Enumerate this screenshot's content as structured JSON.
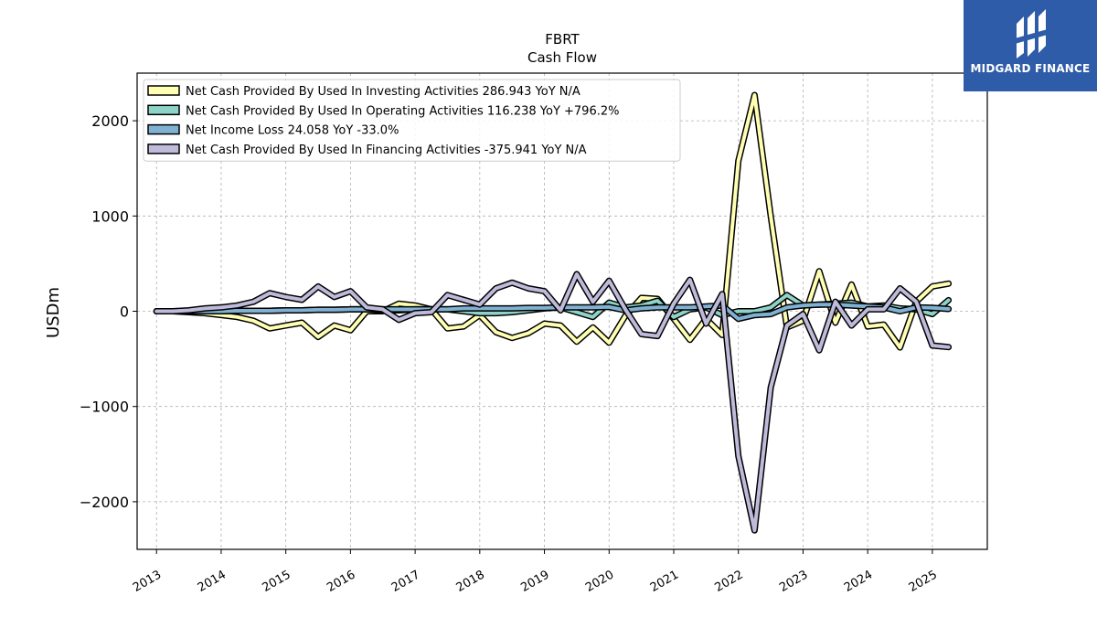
{
  "header": {
    "ticker": "FBRT",
    "subtitle": "Cash Flow"
  },
  "logo": {
    "text": "MIDGARD FINANCE",
    "icon": "midgard-logo-icon",
    "color": "#2f5ca8"
  },
  "chart_data": {
    "type": "line",
    "title": "FBRT",
    "subtitle": "Cash Flow",
    "xlabel": "",
    "ylabel": "USDm",
    "xlim": [
      2012.7,
      2025.85
    ],
    "ylim": [
      -2500,
      2500
    ],
    "yticks": [
      -2000,
      -1000,
      0,
      1000,
      2000
    ],
    "ytick_labels": [
      "−2000",
      "−1000",
      "0",
      "1000",
      "2000"
    ],
    "xticks": [
      2013,
      2014,
      2015,
      2016,
      2017,
      2018,
      2019,
      2020,
      2021,
      2022,
      2023,
      2024,
      2025
    ],
    "xtick_labels": [
      "2013",
      "2014",
      "2015",
      "2016",
      "2017",
      "2018",
      "2019",
      "2020",
      "2021",
      "2022",
      "2023",
      "2024",
      "2025"
    ],
    "grid": true,
    "legend_position": "top-left",
    "x": [
      2013.0,
      2013.25,
      2013.5,
      2013.75,
      2014.0,
      2014.25,
      2014.5,
      2014.75,
      2015.0,
      2015.25,
      2015.5,
      2015.75,
      2016.0,
      2016.25,
      2016.5,
      2016.75,
      2017.0,
      2017.25,
      2017.5,
      2017.75,
      2018.0,
      2018.25,
      2018.5,
      2018.75,
      2019.0,
      2019.25,
      2019.5,
      2019.75,
      2020.0,
      2020.25,
      2020.5,
      2020.75,
      2021.0,
      2021.25,
      2021.5,
      2021.75,
      2022.0,
      2022.25,
      2022.5,
      2022.75,
      2023.0,
      2023.25,
      2023.5,
      2023.75,
      2024.0,
      2024.25,
      2024.5,
      2024.75,
      2025.0,
      2025.25
    ],
    "series": [
      {
        "name": "Net Cash Provided By Used In Investing Activities",
        "legend_label": "Net Cash Provided By Used In Investing Activities  286.943 YoY N/A",
        "color": "#ffffb3",
        "values": [
          0,
          0,
          -10,
          -20,
          -40,
          -60,
          -100,
          -180,
          -150,
          -120,
          -270,
          -150,
          -200,
          0,
          0,
          80,
          60,
          20,
          -180,
          -160,
          -40,
          -220,
          -280,
          -230,
          -130,
          -150,
          -320,
          -170,
          -330,
          -50,
          140,
          130,
          -80,
          -300,
          -80,
          -250,
          1580,
          2270,
          1000,
          -170,
          -100,
          420,
          -120,
          280,
          -160,
          -140,
          -380,
          100,
          260,
          290
        ]
      },
      {
        "name": "Net Cash Provided By Used In Operating Activities",
        "legend_label": "Net Cash Provided By Used In Operating Activities  116.238 YoY +796.2%",
        "color": "#8dd3c7",
        "values": [
          0,
          0,
          0,
          0,
          0,
          5,
          5,
          5,
          10,
          10,
          15,
          15,
          20,
          20,
          10,
          10,
          20,
          20,
          20,
          0,
          -20,
          -20,
          -10,
          10,
          30,
          40,
          -10,
          -60,
          90,
          40,
          60,
          110,
          -60,
          20,
          40,
          -40,
          0,
          0,
          40,
          170,
          60,
          70,
          80,
          90,
          50,
          60,
          30,
          20,
          -30,
          116
        ]
      },
      {
        "name": "Net Income Loss",
        "legend_label": "Net Income Loss  24.058 YoY -33.0%",
        "color": "#80b1d3",
        "values": [
          0,
          0,
          0,
          0,
          0,
          5,
          5,
          5,
          10,
          10,
          15,
          15,
          20,
          20,
          20,
          20,
          20,
          20,
          20,
          30,
          30,
          30,
          30,
          35,
          35,
          40,
          40,
          40,
          45,
          10,
          30,
          40,
          40,
          40,
          50,
          60,
          -80,
          -40,
          -30,
          40,
          60,
          70,
          70,
          60,
          50,
          40,
          0,
          40,
          36,
          24
        ]
      },
      {
        "name": "Net Cash Provided By Used In Financing Activities",
        "legend_label": "Net Cash Provided By Used In Financing Activities  -375.941 YoY N/A",
        "color": "#bebada",
        "values": [
          0,
          0,
          10,
          30,
          40,
          60,
          100,
          190,
          150,
          120,
          260,
          150,
          210,
          40,
          20,
          -90,
          -20,
          -10,
          170,
          120,
          70,
          240,
          300,
          240,
          210,
          10,
          390,
          100,
          320,
          20,
          -240,
          -260,
          80,
          330,
          -130,
          180,
          -1520,
          -2300,
          -800,
          -150,
          -30,
          -410,
          100,
          -150,
          20,
          20,
          240,
          100,
          -360,
          -376
        ]
      }
    ]
  }
}
